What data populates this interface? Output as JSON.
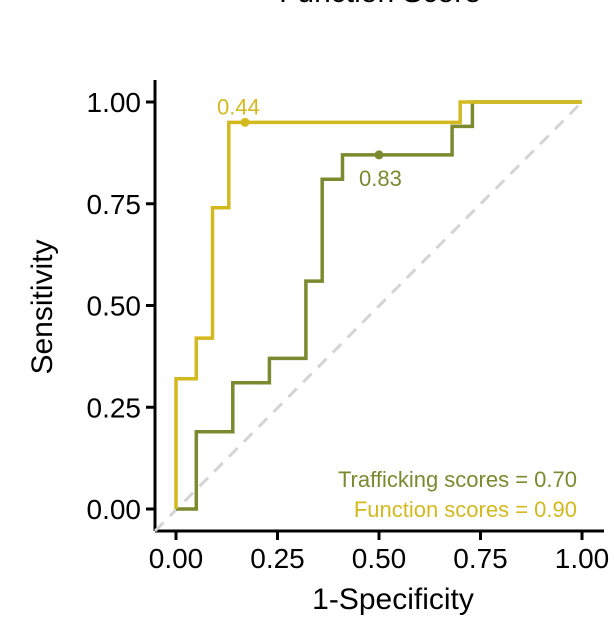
{
  "chart_data": {
    "type": "line",
    "title": "Function Score",
    "xlabel": "1-Specificity",
    "ylabel": "Sensitivity",
    "xlim": [
      0,
      1
    ],
    "ylim": [
      0,
      1
    ],
    "xticks": [
      "0.00",
      "0.25",
      "0.50",
      "0.75",
      "1.00"
    ],
    "yticks": [
      "0.00",
      "0.25",
      "0.50",
      "0.75",
      "1.00"
    ],
    "grid": false,
    "legend_position": "bottom-right",
    "diagonal_reference": true,
    "series": [
      {
        "name": "Trafficking scores = 0.70",
        "color": "#7b8a2f",
        "x": [
          0.0,
          0.05,
          0.05,
          0.14,
          0.14,
          0.23,
          0.23,
          0.32,
          0.32,
          0.36,
          0.36,
          0.41,
          0.41,
          0.68,
          0.68,
          0.73,
          0.73,
          1.0
        ],
        "y": [
          0.0,
          0.0,
          0.19,
          0.19,
          0.31,
          0.31,
          0.37,
          0.37,
          0.56,
          0.56,
          0.81,
          0.81,
          0.87,
          0.87,
          0.94,
          0.94,
          1.0,
          1.0
        ],
        "threshold": {
          "x": 0.5,
          "y": 0.87,
          "label": "0.83"
        }
      },
      {
        "name": "Function scores = 0.90",
        "color": "#d4b91e",
        "x": [
          0.0,
          0.0,
          0.05,
          0.05,
          0.09,
          0.09,
          0.13,
          0.13,
          0.7,
          0.7,
          1.0
        ],
        "y": [
          0.0,
          0.32,
          0.32,
          0.42,
          0.42,
          0.74,
          0.74,
          0.95,
          0.95,
          1.0,
          1.0
        ],
        "threshold": {
          "x": 0.17,
          "y": 0.95,
          "label": "0.44"
        }
      }
    ]
  }
}
